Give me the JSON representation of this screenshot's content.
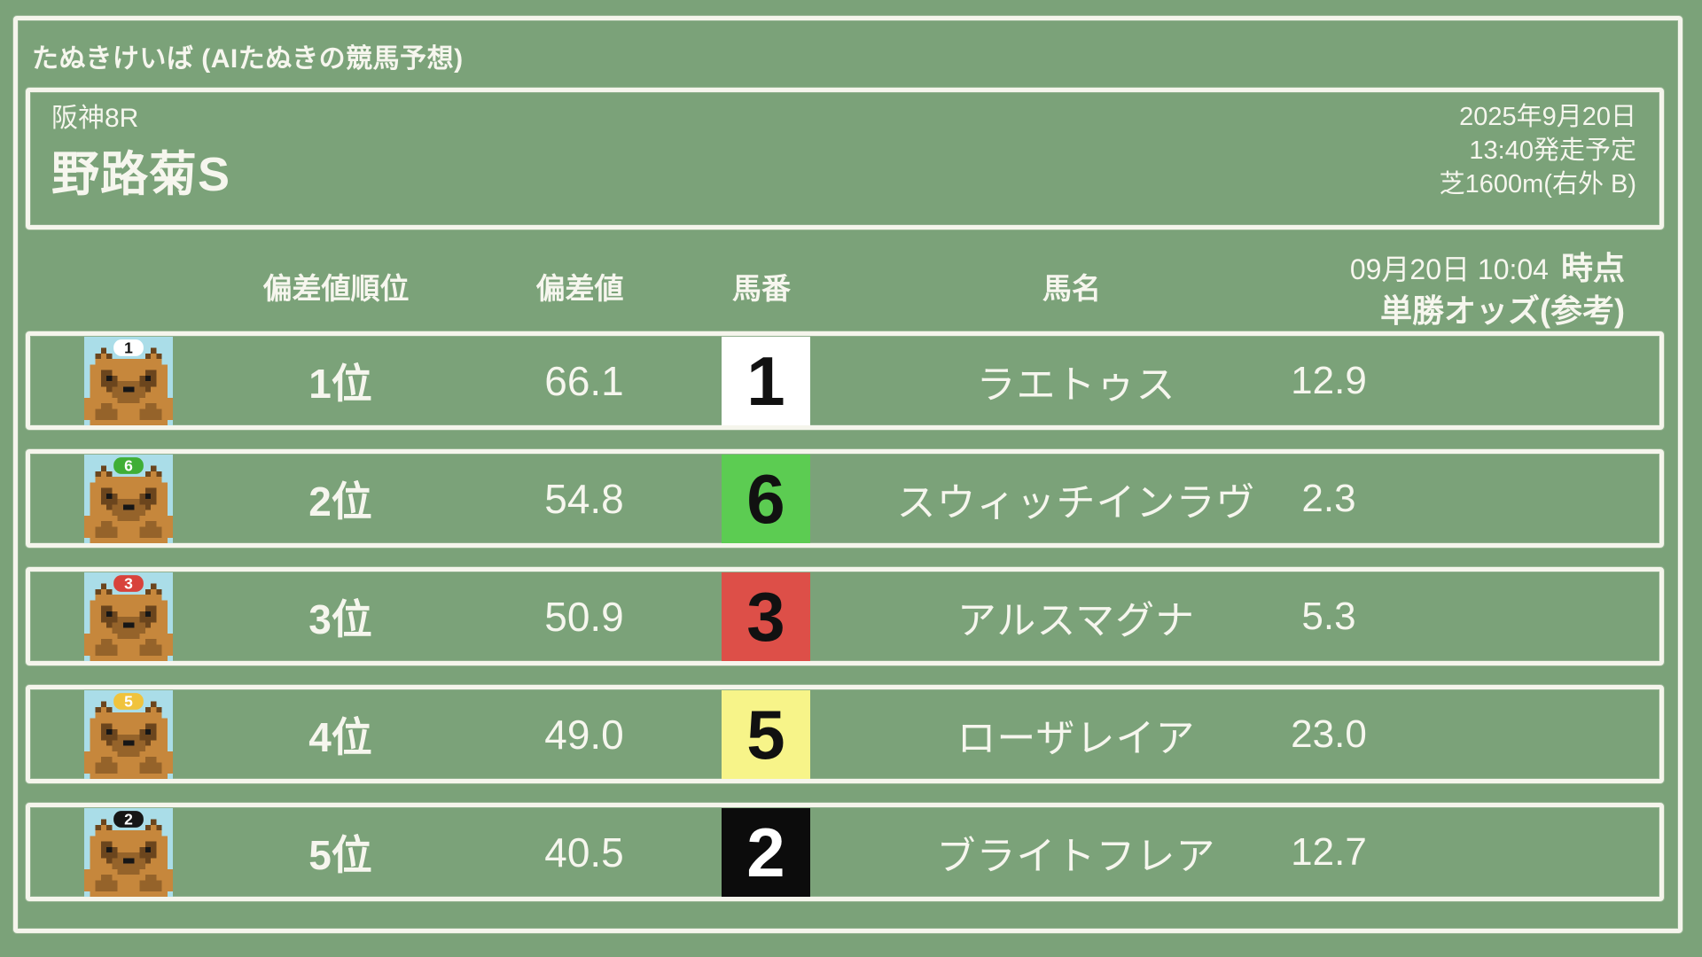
{
  "page": {
    "background_color": "#7ba279",
    "chalk_color": "#f5f5ec",
    "icon_background_color": "#aadde8"
  },
  "header": {
    "site_title": "たぬきけいば (AIたぬきの競馬予想)"
  },
  "race": {
    "meeting": "阪神8R",
    "name": "野路菊S",
    "date": "2025年9月20日",
    "start_time": "13:40発走予定",
    "course": "芝1600m(右外 B)"
  },
  "table": {
    "headers": {
      "rank": "偏差値順位",
      "value": "偏差値",
      "number": "馬番",
      "name": "馬名",
      "odds_time": "09月20日 10:04",
      "odds_time_suffix": "時点",
      "odds_label": "単勝オッズ(参考)"
    },
    "rows": [
      {
        "rank": "1位",
        "value": "66.1",
        "number": "1",
        "number_bg": "#ffffff",
        "number_color": "#111111",
        "cap_bg": "#ffffff",
        "cap_color": "#111111",
        "name": "ラエトゥス",
        "odds": "12.9",
        "icon": "tanuki-cap-1-icon"
      },
      {
        "rank": "2位",
        "value": "54.8",
        "number": "6",
        "number_bg": "#5ccc52",
        "number_color": "#111111",
        "cap_bg": "#3fae35",
        "cap_color": "#ffffff",
        "name": "スウィッチインラヴ",
        "odds": "2.3",
        "icon": "tanuki-cap-6-icon"
      },
      {
        "rank": "3位",
        "value": "50.9",
        "number": "3",
        "number_bg": "#dd4f48",
        "number_color": "#111111",
        "cap_bg": "#d8423b",
        "cap_color": "#ffffff",
        "name": "アルスマグナ",
        "odds": "5.3",
        "icon": "tanuki-cap-3-icon"
      },
      {
        "rank": "4位",
        "value": "49.0",
        "number": "5",
        "number_bg": "#f7f489",
        "number_color": "#111111",
        "cap_bg": "#f0c33c",
        "cap_color": "#ffffff",
        "name": "ローザレイア",
        "odds": "23.0",
        "icon": "tanuki-cap-5-icon"
      },
      {
        "rank": "5位",
        "value": "40.5",
        "number": "2",
        "number_bg": "#0c0c0c",
        "number_color": "#ffffff",
        "cap_bg": "#161616",
        "cap_color": "#ffffff",
        "name": "ブライトフレア",
        "odds": "12.7",
        "icon": "tanuki-cap-2-icon"
      }
    ]
  }
}
